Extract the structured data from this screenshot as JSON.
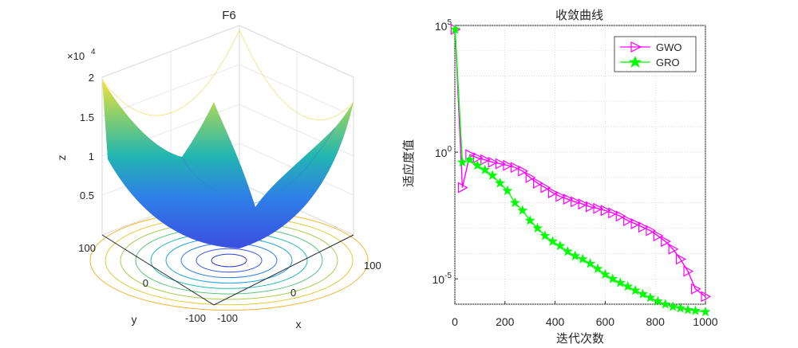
{
  "figure": {
    "left_plot": {
      "title": "F6",
      "xlabel": "x",
      "ylabel": "y",
      "zlabel": "z",
      "z_exponent_base": "×10",
      "z_exponent_power": "4",
      "z_ticks": [
        "0.5",
        "1",
        "1.5",
        "2"
      ],
      "x_ticks": [
        "-100",
        "0",
        "100"
      ],
      "y_ticks": [
        "-100",
        "0",
        "100"
      ],
      "colors": {
        "low": "#3a4fe0",
        "mid": "#22b6b0",
        "high": "#f6e13a"
      }
    },
    "right_plot": {
      "title": "收敛曲线",
      "xlabel": "迭代次数",
      "ylabel": "适应度值",
      "x_ticks": [
        "0",
        "200",
        "400",
        "600",
        "800",
        "1000"
      ],
      "y_ticks": [
        {
          "base": "10",
          "exp": "5",
          "value": 100000
        },
        {
          "base": "10",
          "exp": "0",
          "value": 1
        },
        {
          "base": "10",
          "exp": "-5",
          "value": 1e-05
        }
      ],
      "legend": [
        "GWO",
        "GRO"
      ]
    }
  },
  "chart_data": [
    {
      "type": "surface",
      "title": "F6",
      "xlabel": "x",
      "ylabel": "y",
      "zlabel": "z",
      "xlim": [
        -100,
        100
      ],
      "ylim": [
        -100,
        100
      ],
      "zlim": [
        0,
        20000
      ],
      "z_scale_note": "×10^4",
      "function": "sum of squares (x^2 + y^2)",
      "contours": true
    },
    {
      "type": "line",
      "title": "收敛曲线",
      "xlabel": "迭代次数",
      "ylabel": "适应度值",
      "xlim": [
        0,
        1000
      ],
      "ylim": [
        1e-06,
        100000.0
      ],
      "yscale": "log",
      "grid": true,
      "legend_position": "top-right",
      "series": [
        {
          "name": "GWO",
          "color": "#ff00ff",
          "marker": "triangle-right",
          "x": [
            1,
            30,
            60,
            90,
            120,
            150,
            180,
            210,
            240,
            270,
            300,
            330,
            360,
            390,
            420,
            450,
            480,
            510,
            540,
            570,
            600,
            630,
            660,
            690,
            720,
            750,
            780,
            810,
            840,
            870,
            900,
            930,
            960,
            1000
          ],
          "y": [
            70000,
            0.04,
            0.8,
            0.6,
            0.5,
            0.4,
            0.35,
            0.3,
            0.25,
            0.18,
            0.1,
            0.06,
            0.04,
            0.025,
            0.018,
            0.014,
            0.011,
            0.009,
            0.007,
            0.006,
            0.005,
            0.004,
            0.003,
            0.002,
            0.0015,
            0.0011,
            0.0008,
            0.0005,
            0.0003,
            0.00015,
            6e-05,
            2e-05,
            4e-06,
            2e-06
          ]
        },
        {
          "name": "GRO",
          "color": "#00ff00",
          "marker": "pentagram",
          "x": [
            1,
            30,
            60,
            90,
            120,
            150,
            180,
            210,
            240,
            270,
            300,
            330,
            360,
            390,
            420,
            450,
            480,
            510,
            540,
            570,
            600,
            630,
            660,
            690,
            720,
            750,
            780,
            810,
            840,
            870,
            900,
            930,
            960,
            1000
          ],
          "y": [
            70000,
            0.4,
            0.5,
            0.3,
            0.2,
            0.12,
            0.06,
            0.03,
            0.01,
            0.005,
            0.002,
            0.001,
            0.0005,
            0.0003,
            0.0002,
            0.00012,
            8e-05,
            6e-05,
            4e-05,
            2.5e-05,
            1.5e-05,
            1e-05,
            7e-06,
            5e-06,
            3.5e-06,
            2.5e-06,
            1.8e-06,
            1.3e-06,
            1e-06,
            8e-07,
            7e-07,
            6e-07,
            5.5e-07,
            5e-07
          ]
        }
      ]
    }
  ]
}
